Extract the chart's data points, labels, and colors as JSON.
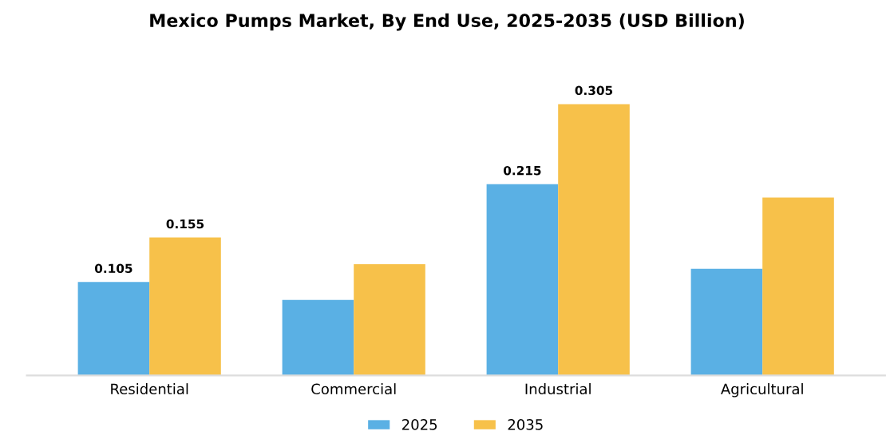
{
  "chart_data": {
    "type": "bar",
    "title": "Mexico Pumps Market, By End Use, 2025-2035 (USD Billion)",
    "categories": [
      "Residential",
      "Commercial",
      "Industrial",
      "Agricultural"
    ],
    "series": [
      {
        "name": "2025",
        "color": "#5ab0e4",
        "values": [
          0.105,
          0.085,
          0.215,
          0.12
        ],
        "value_labels": [
          "0.105",
          null,
          "0.215",
          null
        ]
      },
      {
        "name": "2035",
        "color": "#f7c14a",
        "values": [
          0.155,
          0.125,
          0.305,
          0.2
        ],
        "value_labels": [
          "0.155",
          null,
          "0.305",
          null
        ]
      }
    ],
    "legend": "bottom",
    "grid": false,
    "tick_labels": "x"
  }
}
